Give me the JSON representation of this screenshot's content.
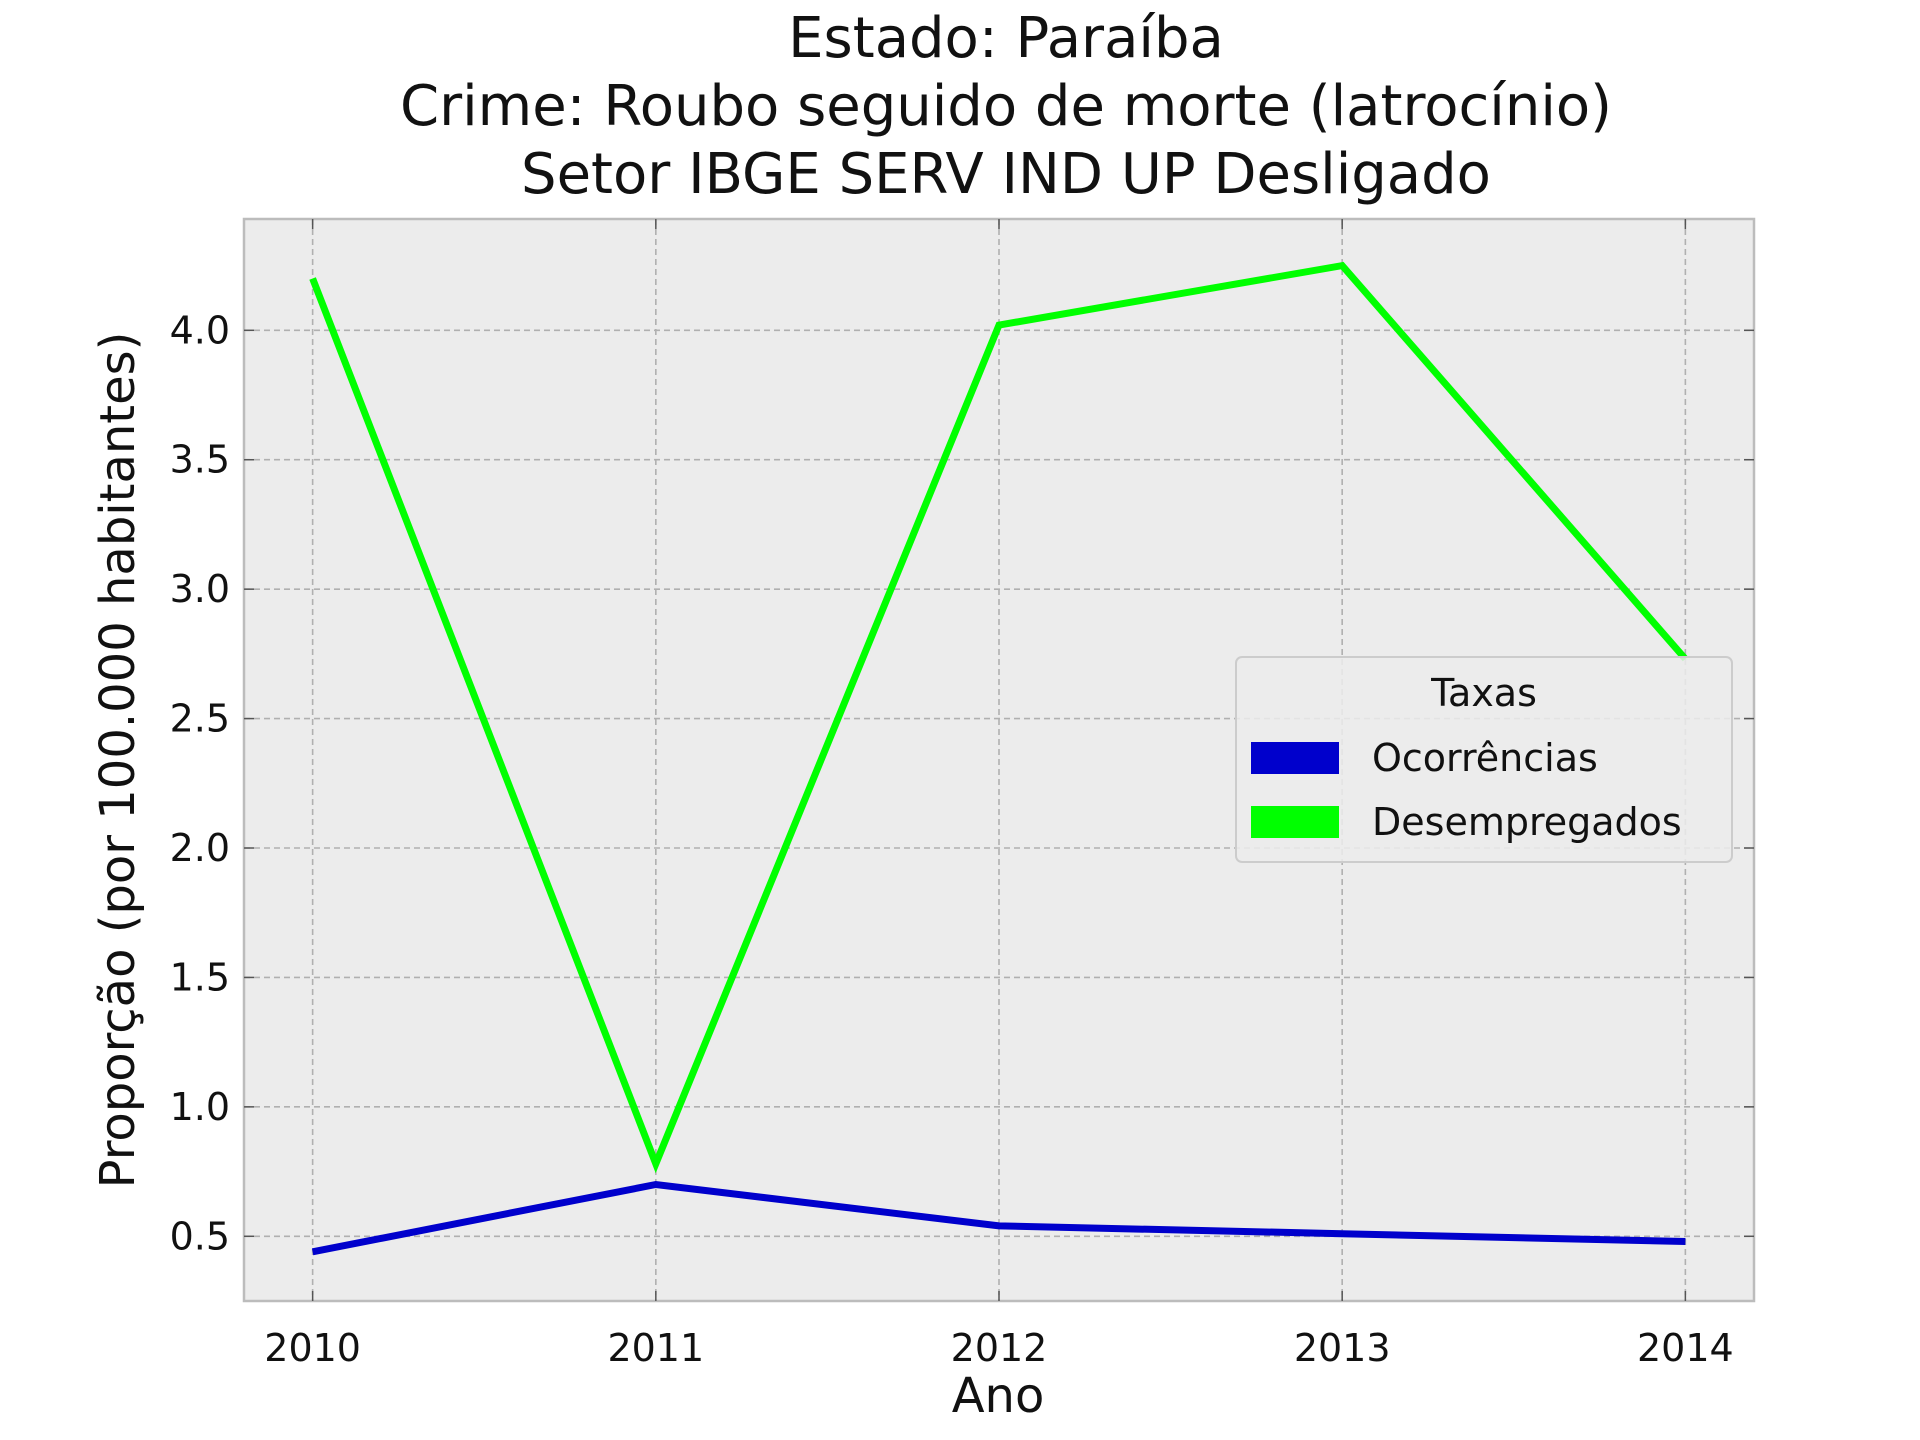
{
  "chart_data": {
    "type": "line",
    "title_lines": [
      "Estado: Paraíba",
      "Crime: Roubo seguido de morte (latrocínio)",
      "Setor IBGE  SERV IND UP   Desligado"
    ],
    "xlabel": "Ano",
    "ylabel": "Proporção (por 100.000 habitantes)",
    "x": [
      2010,
      2011,
      2012,
      2013,
      2014
    ],
    "x_tick_labels": [
      "2010",
      "2011",
      "2012",
      "2013",
      "2014"
    ],
    "y_ticks": [
      0.5,
      1.0,
      1.5,
      2.0,
      2.5,
      3.0,
      3.5,
      4.0
    ],
    "y_tick_labels": [
      "0.5",
      "1.0",
      "1.5",
      "2.0",
      "2.5",
      "3.0",
      "3.5",
      "4.0"
    ],
    "xlim": [
      2009.8,
      2014.2
    ],
    "ylim": [
      0.25,
      4.43
    ],
    "grid": true,
    "legend": {
      "title": "Taxas",
      "placement": "center-right"
    },
    "series": [
      {
        "name": "Ocorrências",
        "color": "#0000cc",
        "values": [
          0.44,
          0.7,
          0.54,
          0.51,
          0.48
        ]
      },
      {
        "name": "Desempregados",
        "color": "#00ff00",
        "values": [
          4.2,
          0.78,
          4.02,
          4.25,
          2.73
        ]
      }
    ]
  }
}
